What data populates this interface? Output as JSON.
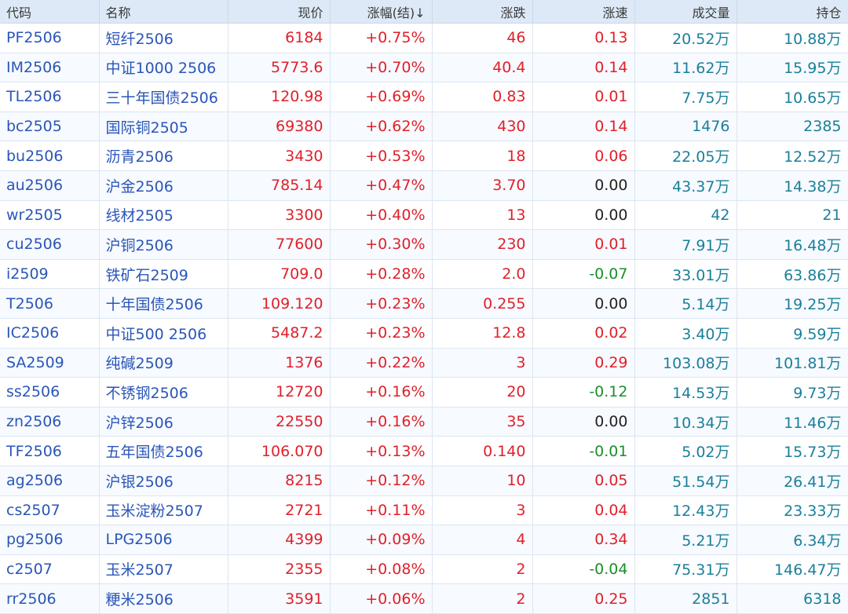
{
  "headers": {
    "code": "代码",
    "name": "名称",
    "price": "现价",
    "pct": "涨幅(结)↓",
    "chg": "涨跌",
    "speed": "涨速",
    "volume": "成交量",
    "oi": "持仓"
  },
  "colors": {
    "up": "#e0202a",
    "down": "#1a8f2a",
    "flat": "#222222",
    "volume": "#1a7f9a",
    "link": "#2a56b8"
  },
  "rows": [
    {
      "code": "PF2506",
      "name": "短纤2506",
      "price": "6184",
      "pct": "+0.75%",
      "chg": "46",
      "speed": "0.13",
      "volume": "20.52万",
      "oi": "10.88万"
    },
    {
      "code": "IM2506",
      "name": "中证1000 2506",
      "price": "5773.6",
      "pct": "+0.70%",
      "chg": "40.4",
      "speed": "0.14",
      "volume": "11.62万",
      "oi": "15.95万"
    },
    {
      "code": "TL2506",
      "name": "三十年国债2506",
      "price": "120.98",
      "pct": "+0.69%",
      "chg": "0.83",
      "speed": "0.01",
      "volume": "7.75万",
      "oi": "10.65万"
    },
    {
      "code": "bc2505",
      "name": "国际铜2505",
      "price": "69380",
      "pct": "+0.62%",
      "chg": "430",
      "speed": "0.14",
      "volume": "1476",
      "oi": "2385"
    },
    {
      "code": "bu2506",
      "name": "沥青2506",
      "price": "3430",
      "pct": "+0.53%",
      "chg": "18",
      "speed": "0.06",
      "volume": "22.05万",
      "oi": "12.52万"
    },
    {
      "code": "au2506",
      "name": "沪金2506",
      "price": "785.14",
      "pct": "+0.47%",
      "chg": "3.70",
      "speed": "0.00",
      "volume": "43.37万",
      "oi": "14.38万"
    },
    {
      "code": "wr2505",
      "name": "线材2505",
      "price": "3300",
      "pct": "+0.40%",
      "chg": "13",
      "speed": "0.00",
      "volume": "42",
      "oi": "21"
    },
    {
      "code": "cu2506",
      "name": "沪铜2506",
      "price": "77600",
      "pct": "+0.30%",
      "chg": "230",
      "speed": "0.01",
      "volume": "7.91万",
      "oi": "16.48万"
    },
    {
      "code": "i2509",
      "name": "铁矿石2509",
      "price": "709.0",
      "pct": "+0.28%",
      "chg": "2.0",
      "speed": "-0.07",
      "volume": "33.01万",
      "oi": "63.86万"
    },
    {
      "code": "T2506",
      "name": "十年国债2506",
      "price": "109.120",
      "pct": "+0.23%",
      "chg": "0.255",
      "speed": "0.00",
      "volume": "5.14万",
      "oi": "19.25万"
    },
    {
      "code": "IC2506",
      "name": "中证500 2506",
      "price": "5487.2",
      "pct": "+0.23%",
      "chg": "12.8",
      "speed": "0.02",
      "volume": "3.40万",
      "oi": "9.59万"
    },
    {
      "code": "SA2509",
      "name": "纯碱2509",
      "price": "1376",
      "pct": "+0.22%",
      "chg": "3",
      "speed": "0.29",
      "volume": "103.08万",
      "oi": "101.81万"
    },
    {
      "code": "ss2506",
      "name": "不锈钢2506",
      "price": "12720",
      "pct": "+0.16%",
      "chg": "20",
      "speed": "-0.12",
      "volume": "14.53万",
      "oi": "9.73万"
    },
    {
      "code": "zn2506",
      "name": "沪锌2506",
      "price": "22550",
      "pct": "+0.16%",
      "chg": "35",
      "speed": "0.00",
      "volume": "10.34万",
      "oi": "11.46万"
    },
    {
      "code": "TF2506",
      "name": "五年国债2506",
      "price": "106.070",
      "pct": "+0.13%",
      "chg": "0.140",
      "speed": "-0.01",
      "volume": "5.02万",
      "oi": "15.73万"
    },
    {
      "code": "ag2506",
      "name": "沪银2506",
      "price": "8215",
      "pct": "+0.12%",
      "chg": "10",
      "speed": "0.05",
      "volume": "51.54万",
      "oi": "26.41万"
    },
    {
      "code": "cs2507",
      "name": "玉米淀粉2507",
      "price": "2721",
      "pct": "+0.11%",
      "chg": "3",
      "speed": "0.04",
      "volume": "12.43万",
      "oi": "23.33万"
    },
    {
      "code": "pg2506",
      "name": "LPG2506",
      "price": "4399",
      "pct": "+0.09%",
      "chg": "4",
      "speed": "0.34",
      "volume": "5.21万",
      "oi": "6.34万"
    },
    {
      "code": "c2507",
      "name": "玉米2507",
      "price": "2355",
      "pct": "+0.08%",
      "chg": "2",
      "speed": "-0.04",
      "volume": "75.31万",
      "oi": "146.47万"
    },
    {
      "code": "rr2506",
      "name": "粳米2506",
      "price": "3591",
      "pct": "+0.06%",
      "chg": "2",
      "speed": "0.25",
      "volume": "2851",
      "oi": "6318"
    }
  ]
}
